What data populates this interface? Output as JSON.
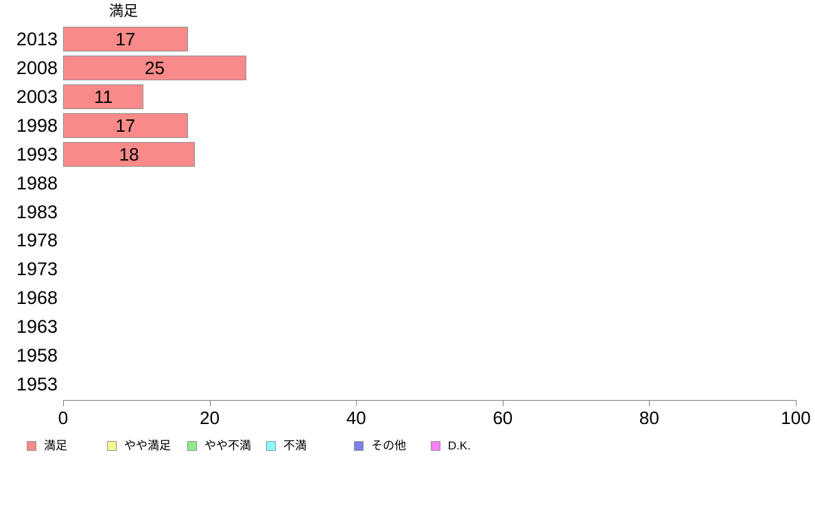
{
  "chart_data": {
    "type": "bar",
    "orientation": "horizontal",
    "title": "満足",
    "series_name": "満足",
    "categories": [
      "2013",
      "2008",
      "2003",
      "1998",
      "1993",
      "1988",
      "1983",
      "1978",
      "1973",
      "1968",
      "1963",
      "1958",
      "1953"
    ],
    "values": [
      17,
      25,
      11,
      17,
      18,
      null,
      null,
      null,
      null,
      null,
      null,
      null,
      null
    ],
    "xlabel": "",
    "ylabel": "",
    "xlim": [
      0,
      100
    ],
    "x_ticks": [
      0,
      20,
      40,
      60,
      80,
      100
    ],
    "grid": false,
    "legend_position": "bottom",
    "bar_fill_color": "#FA8A8A",
    "bar_border_color": "#8C8C8C",
    "axis_color": "#7F7F7F",
    "legend": [
      {
        "key": "satisfied",
        "label": "満足",
        "color": "#FA8A8A"
      },
      {
        "key": "somewhat-satisfied",
        "label": "やや満足",
        "color": "#F8F896"
      },
      {
        "key": "somewhat-dissatisfied",
        "label": "やや不満",
        "color": "#8DEB8D"
      },
      {
        "key": "dissatisfied",
        "label": "不満",
        "color": "#85FFFF"
      },
      {
        "key": "other",
        "label": "その他",
        "color": "#8080E8"
      },
      {
        "key": "dk",
        "label": "D.K.",
        "color": "#FA80FA"
      }
    ]
  }
}
